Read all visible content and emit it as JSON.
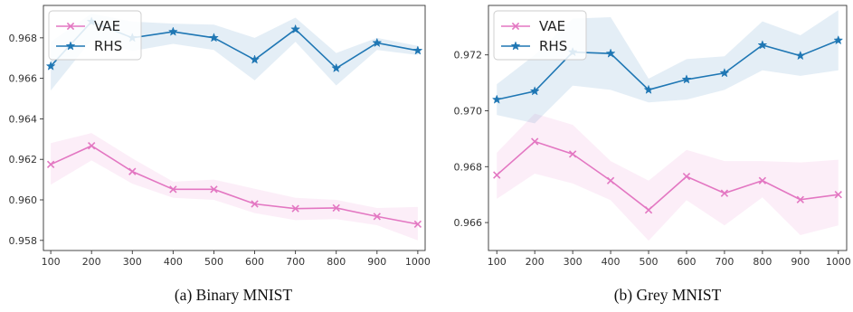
{
  "figure": {
    "captions": [
      "(a) Binary MNIST",
      "(b) Grey MNIST"
    ]
  },
  "colors": {
    "VAE": "#e377c2",
    "RHS": "#1f77b4"
  },
  "chart_data": [
    {
      "type": "line",
      "caption": "(a) Binary MNIST",
      "x": [
        100,
        200,
        300,
        400,
        500,
        600,
        700,
        800,
        900,
        1000
      ],
      "xticks": [
        "100",
        "200",
        "300",
        "400",
        "500",
        "600",
        "700",
        "800",
        "900",
        "1000"
      ],
      "ylim": [
        0.9575,
        0.9696
      ],
      "yticks": [
        "0.958",
        "0.960",
        "0.962",
        "0.964",
        "0.966",
        "0.968"
      ],
      "legend_position": "top-left",
      "grid": false,
      "series": [
        {
          "name": "VAE",
          "color": "#e377c2",
          "marker": "x",
          "values": [
            0.96175,
            0.96267,
            0.9614,
            0.96052,
            0.96052,
            0.9598,
            0.95957,
            0.9596,
            0.95918,
            0.9588
          ],
          "upper": [
            0.9628,
            0.9633,
            0.96205,
            0.9609,
            0.961,
            0.96055,
            0.9601,
            0.96,
            0.9596,
            0.95965
          ],
          "lower": [
            0.96075,
            0.96195,
            0.9608,
            0.9601,
            0.96,
            0.95935,
            0.959,
            0.95905,
            0.95875,
            0.958
          ]
        },
        {
          "name": "RHS",
          "color": "#1f77b4",
          "marker": "*",
          "values": [
            0.9666,
            0.9688,
            0.968,
            0.9683,
            0.968,
            0.96692,
            0.96842,
            0.9665,
            0.96775,
            0.96737
          ],
          "upper": [
            0.9678,
            0.9692,
            0.9688,
            0.9687,
            0.96865,
            0.968,
            0.969,
            0.96725,
            0.968,
            0.9676
          ],
          "lower": [
            0.9654,
            0.9679,
            0.96735,
            0.9677,
            0.9674,
            0.9659,
            0.9678,
            0.96565,
            0.9674,
            0.96715
          ]
        }
      ]
    },
    {
      "type": "line",
      "caption": "(b) Grey MNIST",
      "x": [
        100,
        200,
        300,
        400,
        500,
        600,
        700,
        800,
        900,
        1000
      ],
      "xticks": [
        "100",
        "200",
        "300",
        "400",
        "500",
        "600",
        "700",
        "800",
        "900",
        "1000"
      ],
      "ylim": [
        0.965,
        0.97377
      ],
      "yticks": [
        "0.966",
        "0.968",
        "0.970",
        "0.972"
      ],
      "legend_position": "top-left",
      "grid": false,
      "series": [
        {
          "name": "VAE",
          "color": "#e377c2",
          "marker": "x",
          "values": [
            0.9677,
            0.9689,
            0.96845,
            0.9675,
            0.96645,
            0.96765,
            0.96705,
            0.9675,
            0.96682,
            0.967
          ],
          "upper": [
            0.9685,
            0.9699,
            0.9695,
            0.9682,
            0.9675,
            0.9686,
            0.9682,
            0.9682,
            0.96815,
            0.96825
          ],
          "lower": [
            0.96685,
            0.96775,
            0.9674,
            0.9668,
            0.96535,
            0.9668,
            0.9659,
            0.9669,
            0.96555,
            0.9659
          ]
        },
        {
          "name": "RHS",
          "color": "#1f77b4",
          "marker": "*",
          "values": [
            0.9704,
            0.9707,
            0.9721,
            0.97205,
            0.97075,
            0.97112,
            0.97135,
            0.97235,
            0.97197,
            0.97252
          ],
          "upper": [
            0.97095,
            0.972,
            0.9733,
            0.97335,
            0.97115,
            0.97185,
            0.97195,
            0.9732,
            0.9727,
            0.9736
          ],
          "lower": [
            0.96985,
            0.96955,
            0.9709,
            0.97075,
            0.9703,
            0.9704,
            0.97075,
            0.97145,
            0.97125,
            0.97145
          ]
        }
      ]
    }
  ]
}
